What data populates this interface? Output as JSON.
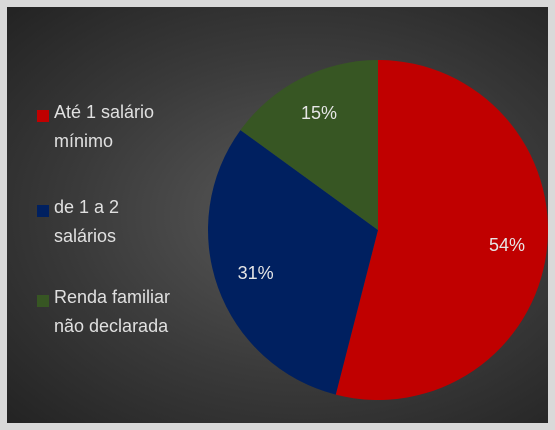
{
  "chart_data": {
    "type": "pie",
    "categories": [
      "Até 1 salário mínimo",
      "de 1 a 2 salários",
      "Renda familiar não declarada"
    ],
    "values": [
      54,
      31,
      15
    ],
    "value_labels": [
      "54%",
      "31%",
      "15%"
    ],
    "colors": [
      "#c00000",
      "#002060",
      "#375623"
    ],
    "legend": "left"
  }
}
